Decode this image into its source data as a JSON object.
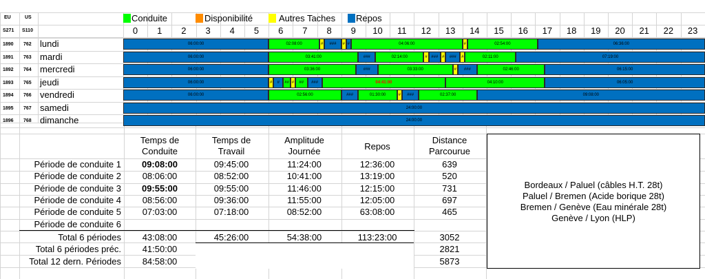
{
  "header": {
    "eu_label": "EU",
    "us_label": "US",
    "s271_label": "S271",
    "s110_label": "S110"
  },
  "legend": [
    {
      "label": "Conduite",
      "color": "#00ff00"
    },
    {
      "label": "Disponibilité",
      "color": "#ff8c00"
    },
    {
      "label": "Autres Taches",
      "color": "#ffff00"
    },
    {
      "label": "Repos",
      "color": "#0070c0"
    }
  ],
  "hours": [
    "0",
    "1",
    "2",
    "3",
    "4",
    "5",
    "6",
    "7",
    "8",
    "9",
    "10",
    "11",
    "12",
    "13",
    "14",
    "15",
    "16",
    "17",
    "18",
    "19",
    "20",
    "21",
    "22",
    "23"
  ],
  "days": [
    {
      "eu": "1890",
      "us": "762",
      "name": "lundi"
    },
    {
      "eu": "1891",
      "us": "763",
      "name": "mardi"
    },
    {
      "eu": "1892",
      "us": "764",
      "name": "mercredi"
    },
    {
      "eu": "1893",
      "us": "765",
      "name": "jeudi"
    },
    {
      "eu": "1894",
      "us": "766",
      "name": "vendredi"
    },
    {
      "eu": "1895",
      "us": "767",
      "name": "samedi"
    },
    {
      "eu": "1896",
      "us": "768",
      "name": "dimanche"
    }
  ],
  "timeline": [
    [
      {
        "s": 0,
        "e": 6.0,
        "type": "repos",
        "label": "06:00:00"
      },
      {
        "s": 6.0,
        "e": 8.1,
        "type": "conduite",
        "label": "02:08:00"
      },
      {
        "s": 8.1,
        "e": 8.3,
        "type": "autres",
        "label": "#"
      },
      {
        "s": 8.3,
        "e": 9.0,
        "type": "repos",
        "label": "###"
      },
      {
        "s": 9.0,
        "e": 9.2,
        "type": "autres",
        "label": "#"
      },
      {
        "s": 9.2,
        "e": 9.4,
        "type": "repos",
        "label": "#"
      },
      {
        "s": 9.4,
        "e": 14.0,
        "type": "conduite",
        "label": "04:06:00"
      },
      {
        "s": 14.0,
        "e": 14.2,
        "type": "autres",
        "label": "#"
      },
      {
        "s": 14.2,
        "e": 17.1,
        "type": "conduite",
        "label": "02:54:00"
      },
      {
        "s": 17.1,
        "e": 24,
        "type": "repos",
        "label": "06:36:00"
      }
    ],
    [
      {
        "s": 0,
        "e": 6.0,
        "type": "repos",
        "label": "06:00:00"
      },
      {
        "s": 6.0,
        "e": 9.7,
        "type": "conduite",
        "label": "03:41:00"
      },
      {
        "s": 9.7,
        "e": 10.4,
        "type": "repos",
        "label": "###"
      },
      {
        "s": 10.4,
        "e": 12.4,
        "type": "conduite",
        "label": "02:14:00"
      },
      {
        "s": 12.4,
        "e": 12.6,
        "type": "autres",
        "label": "#"
      },
      {
        "s": 12.6,
        "e": 13.1,
        "type": "repos",
        "label": "###"
      },
      {
        "s": 13.1,
        "e": 13.3,
        "type": "autres",
        "label": "#"
      },
      {
        "s": 13.3,
        "e": 13.9,
        "type": "repos",
        "label": "###"
      },
      {
        "s": 13.9,
        "e": 14.1,
        "type": "autres",
        "label": "#"
      },
      {
        "s": 14.1,
        "e": 16.2,
        "type": "conduite",
        "label": "02:11:00"
      },
      {
        "s": 16.2,
        "e": 24,
        "type": "repos",
        "label": "07:19:00"
      }
    ],
    [
      {
        "s": 0,
        "e": 6.0,
        "type": "repos",
        "label": "06:00:00"
      },
      {
        "s": 6.0,
        "e": 9.6,
        "type": "conduite",
        "label": "03:36:00"
      },
      {
        "s": 9.6,
        "e": 10.5,
        "type": "repos",
        "label": "###"
      },
      {
        "s": 10.5,
        "e": 13.6,
        "type": "conduite",
        "label": "03:33:00"
      },
      {
        "s": 13.6,
        "e": 13.8,
        "type": "autres",
        "label": "#"
      },
      {
        "s": 13.8,
        "e": 14.6,
        "type": "repos",
        "label": "###"
      },
      {
        "s": 14.6,
        "e": 17.4,
        "type": "conduite",
        "label": "02:46:00"
      },
      {
        "s": 17.4,
        "e": 24,
        "type": "repos",
        "label": "06:15:00"
      }
    ],
    [
      {
        "s": 0,
        "e": 6.0,
        "type": "repos",
        "label": "06:00:00"
      },
      {
        "s": 6.0,
        "e": 6.2,
        "type": "autres",
        "label": "#"
      },
      {
        "s": 6.2,
        "e": 6.6,
        "type": "repos",
        "label": "#"
      },
      {
        "s": 6.6,
        "e": 6.9,
        "type": "conduite",
        "label": "##"
      },
      {
        "s": 6.9,
        "e": 7.1,
        "type": "autres",
        "label": "#"
      },
      {
        "s": 7.1,
        "e": 7.6,
        "type": "conduite",
        "label": "##"
      },
      {
        "s": 7.6,
        "e": 8.2,
        "type": "repos",
        "label": "###"
      },
      {
        "s": 8.2,
        "e": 13.3,
        "type": "conduite",
        "label": "04:41:00"
      },
      {
        "s": 13.3,
        "e": 17.4,
        "type": "conduite",
        "label": "04:10:00"
      },
      {
        "s": 17.4,
        "e": 24,
        "type": "repos",
        "label": "06:05:00"
      }
    ],
    [
      {
        "s": 0,
        "e": 6.0,
        "type": "repos",
        "label": "06:00:00"
      },
      {
        "s": 6.0,
        "e": 9.0,
        "type": "conduite",
        "label": "02:56:00"
      },
      {
        "s": 9.0,
        "e": 9.7,
        "type": "repos",
        "label": "###"
      },
      {
        "s": 9.7,
        "e": 11.3,
        "type": "conduite",
        "label": "01:30:00"
      },
      {
        "s": 11.3,
        "e": 11.5,
        "type": "autres",
        "label": "#"
      },
      {
        "s": 11.5,
        "e": 12.2,
        "type": "repos",
        "label": "###"
      },
      {
        "s": 12.2,
        "e": 14.6,
        "type": "conduite",
        "label": "02:37:00"
      },
      {
        "s": 14.6,
        "e": 24,
        "type": "repos",
        "label": "09:08:00"
      }
    ],
    [
      {
        "s": 0,
        "e": 24,
        "type": "repos",
        "label": "24:00:00"
      }
    ],
    [
      {
        "s": 0,
        "e": 24,
        "type": "repos",
        "label": "24:00:00"
      }
    ]
  ],
  "colors": {
    "conduite": "#00ff00",
    "disponibilite": "#ff8c00",
    "autres": "#ffff00",
    "repos": "#0070c0",
    "highlight_text": "#ff0000"
  },
  "table": {
    "headers": [
      [
        "Temps de",
        "Conduite"
      ],
      [
        "Temps de",
        "Travail"
      ],
      [
        "Amplitude",
        "Journée"
      ],
      [
        "Repos",
        ""
      ],
      [
        "Distance",
        "Parcourue"
      ]
    ],
    "rows": [
      {
        "label": "Période de conduite 1",
        "conduite": "09:08:00",
        "travail": "09:45:00",
        "amplitude": "11:24:00",
        "repos": "12:36:00",
        "distance": "639",
        "bold": true
      },
      {
        "label": "Période de conduite 2",
        "conduite": "08:06:00",
        "travail": "08:52:00",
        "amplitude": "10:41:00",
        "repos": "13:19:00",
        "distance": "520",
        "bold": false
      },
      {
        "label": "Période de conduite 3",
        "conduite": "09:55:00",
        "travail": "09:55:00",
        "amplitude": "11:46:00",
        "repos": "12:15:00",
        "distance": "731",
        "bold": true
      },
      {
        "label": "Période de conduite 4",
        "conduite": "08:56:00",
        "travail": "09:36:00",
        "amplitude": "11:55:00",
        "repos": "12:05:00",
        "distance": "697",
        "bold": false
      },
      {
        "label": "Période de conduite 5",
        "conduite": "07:03:00",
        "travail": "07:18:00",
        "amplitude": "08:52:00",
        "repos": "63:08:00",
        "distance": "465",
        "bold": false
      },
      {
        "label": "Période de conduite 6",
        "conduite": "",
        "travail": "",
        "amplitude": "",
        "repos": "",
        "distance": "",
        "bold": false
      }
    ],
    "total": {
      "label": "Total 6 périodes",
      "conduite": "43:08:00",
      "travail": "45:26:00",
      "amplitude": "54:38:00",
      "repos": "113:23:00",
      "distance": "3052"
    },
    "prev": {
      "label": "Total 6 périodes préc.",
      "conduite": "41:50:00",
      "distance": "2821"
    },
    "last12": {
      "label": "Total 12 dern. Périodes",
      "conduite": "84:58:00",
      "distance": "5873"
    }
  },
  "routes": [
    "Bordeaux / Paluel (câbles H.T. 28t)",
    "Paluel / Bremen (Acide borique 28t)",
    "Bremen / Genève (Eau minérale 28t)",
    "Genève / Lyon (HLP)"
  ]
}
